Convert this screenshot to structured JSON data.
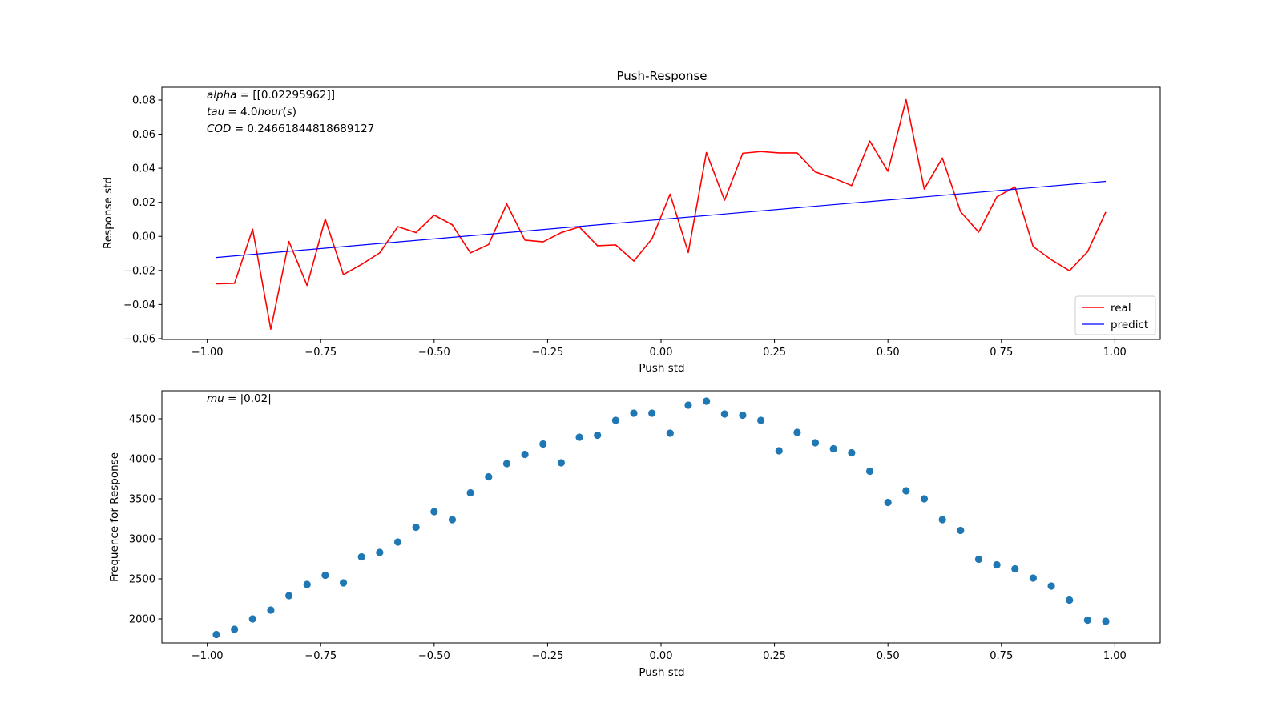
{
  "chart_data": [
    {
      "type": "line",
      "title": "Push-Response",
      "xlabel": "Push std",
      "ylabel": "Response std",
      "xlim": [
        -1.1,
        1.1
      ],
      "ylim": [
        -0.0605,
        0.0875
      ],
      "xticks": [
        -1.0,
        -0.75,
        -0.5,
        -0.25,
        0.0,
        0.25,
        0.5,
        0.75,
        1.0
      ],
      "xtick_labels": [
        "−1.00",
        "−0.75",
        "−0.50",
        "−0.25",
        "0.00",
        "0.25",
        "0.50",
        "0.75",
        "1.00"
      ],
      "yticks": [
        -0.06,
        -0.04,
        -0.02,
        0.0,
        0.02,
        0.04,
        0.06,
        0.08
      ],
      "ytick_labels": [
        "−0.06",
        "−0.04",
        "−0.02",
        "0.00",
        "0.02",
        "0.04",
        "0.06",
        "0.08"
      ],
      "legend_position": "bottom-right",
      "annotations": [
        {
          "var": "alpha",
          "rest": " = [[0.02295962]]"
        },
        {
          "var": "tau",
          "rest": " = 4.0",
          "var2": "hour",
          "rest2": "(",
          "var3": "s",
          "rest3": ")"
        },
        {
          "var": "COD",
          "rest": " = 0.24661844818689127"
        }
      ],
      "x": [
        -0.98,
        -0.94,
        -0.9,
        -0.86,
        -0.82,
        -0.78,
        -0.74,
        -0.7,
        -0.66,
        -0.62,
        -0.58,
        -0.54,
        -0.5,
        -0.46,
        -0.42,
        -0.38,
        -0.34,
        -0.3,
        -0.26,
        -0.22,
        -0.18,
        -0.14,
        -0.1,
        -0.06,
        -0.02,
        0.02,
        0.06,
        0.1,
        0.14,
        0.18,
        0.22,
        0.26,
        0.3,
        0.34,
        0.38,
        0.42,
        0.46,
        0.5,
        0.54,
        0.58,
        0.62,
        0.66,
        0.7,
        0.74,
        0.78,
        0.82,
        0.86,
        0.9,
        0.94,
        0.98
      ],
      "series": [
        {
          "name": "real",
          "color": "#ff0000",
          "values": [
            -0.0278,
            -0.0276,
            0.0042,
            -0.0545,
            -0.003,
            -0.0288,
            0.0102,
            -0.0224,
            -0.0165,
            -0.0097,
            0.0057,
            0.0022,
            0.0125,
            0.0068,
            -0.0097,
            -0.0048,
            0.019,
            -0.0022,
            -0.0032,
            0.0022,
            0.0055,
            -0.0055,
            -0.005,
            -0.0145,
            -0.0015,
            0.0248,
            -0.0095,
            0.0492,
            0.0212,
            0.0488,
            0.0498,
            0.049,
            0.049,
            0.0378,
            0.0342,
            0.0298,
            0.056,
            0.0382,
            0.0802,
            0.0278,
            0.046,
            0.0145,
            0.0025,
            0.0232,
            0.029,
            -0.006,
            -0.0137,
            -0.0202,
            -0.009,
            0.0143
          ]
        },
        {
          "name": "predict",
          "color": "#0000ff",
          "x": [
            -0.98,
            0.98
          ],
          "values": [
            -0.0124,
            0.0323
          ]
        }
      ]
    },
    {
      "type": "scatter",
      "title": "",
      "xlabel": "Push std",
      "ylabel": "Frequence for Response",
      "xlim": [
        -1.1,
        1.1
      ],
      "ylim": [
        1700,
        4850
      ],
      "xticks": [
        -1.0,
        -0.75,
        -0.5,
        -0.25,
        0.0,
        0.25,
        0.5,
        0.75,
        1.0
      ],
      "xtick_labels": [
        "−1.00",
        "−0.75",
        "−0.50",
        "−0.25",
        "0.00",
        "0.25",
        "0.50",
        "0.75",
        "1.00"
      ],
      "yticks": [
        2000,
        2500,
        3000,
        3500,
        4000,
        4500
      ],
      "ytick_labels": [
        "2000",
        "2500",
        "3000",
        "3500",
        "4000",
        "4500"
      ],
      "annotations": [
        {
          "var": "mu",
          "rest": " = |0.02|"
        }
      ],
      "x": [
        -0.98,
        -0.94,
        -0.9,
        -0.86,
        -0.82,
        -0.78,
        -0.74,
        -0.7,
        -0.66,
        -0.62,
        -0.58,
        -0.54,
        -0.5,
        -0.46,
        -0.42,
        -0.38,
        -0.34,
        -0.3,
        -0.26,
        -0.22,
        -0.18,
        -0.14,
        -0.1,
        -0.06,
        -0.02,
        0.02,
        0.06,
        0.1,
        0.14,
        0.18,
        0.22,
        0.26,
        0.3,
        0.34,
        0.38,
        0.42,
        0.46,
        0.5,
        0.54,
        0.58,
        0.62,
        0.66,
        0.7,
        0.74,
        0.78,
        0.82,
        0.86,
        0.9,
        0.94,
        0.98
      ],
      "series": [
        {
          "color": "#1f77b4",
          "values": [
            1805,
            1870,
            2000,
            2110,
            2290,
            2430,
            2545,
            2450,
            2775,
            2830,
            2960,
            3145,
            3340,
            3240,
            3575,
            3775,
            3940,
            4055,
            4185,
            3950,
            4270,
            4295,
            4480,
            4570,
            4570,
            4320,
            4670,
            4720,
            4560,
            4545,
            4480,
            4100,
            4330,
            4200,
            4125,
            4075,
            3845,
            3455,
            3600,
            3500,
            3240,
            3105,
            2745,
            2675,
            2625,
            2510,
            2410,
            2235,
            1985,
            1970
          ]
        }
      ]
    }
  ]
}
